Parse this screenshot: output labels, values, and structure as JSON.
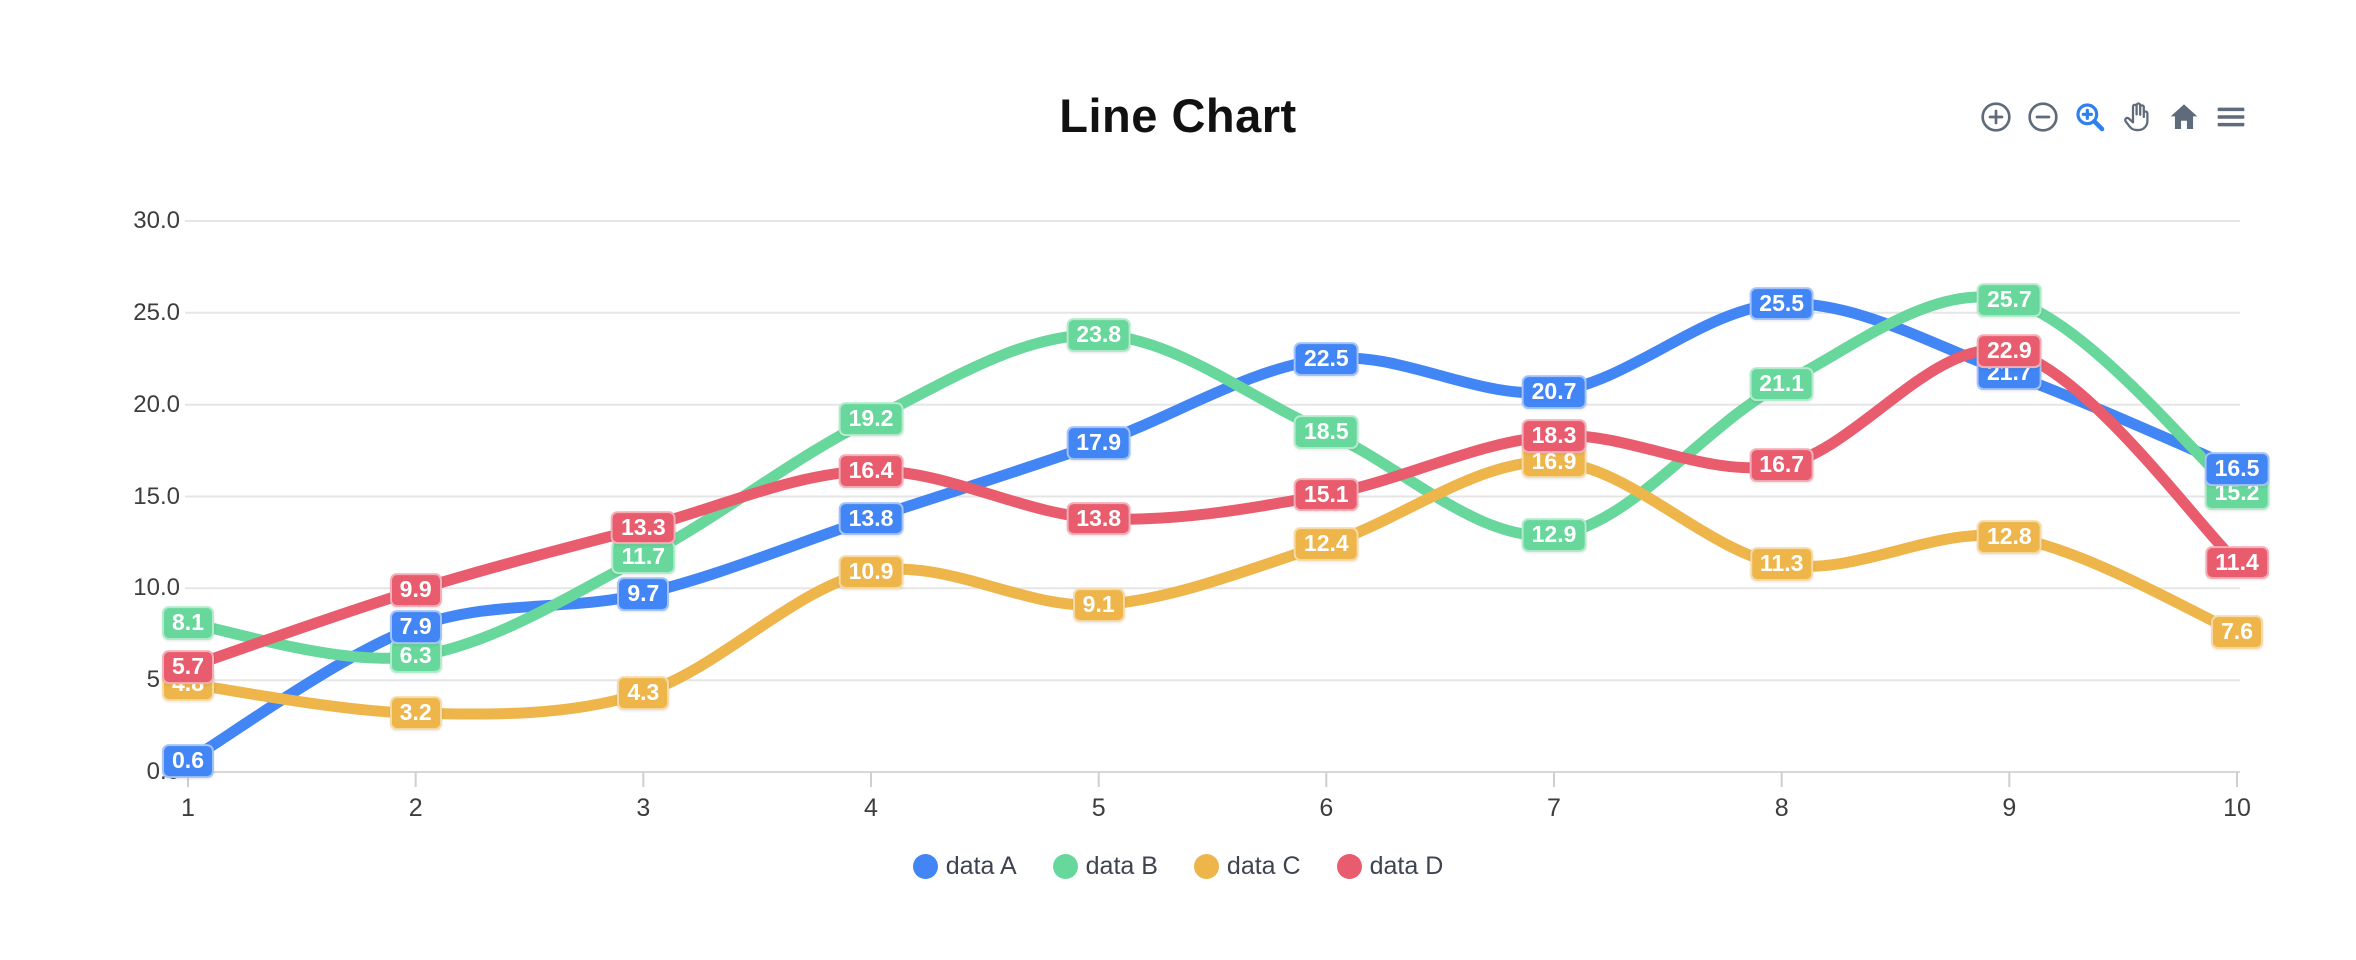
{
  "title": "Line Chart",
  "toolbar": {
    "icons": [
      "zoom-in-icon",
      "zoom-out-icon",
      "box-zoom-icon",
      "pan-icon",
      "home-icon",
      "menu-icon"
    ]
  },
  "chart_data": {
    "type": "line",
    "title": "Line Chart",
    "x": [
      1,
      2,
      3,
      4,
      5,
      6,
      7,
      8,
      9,
      10
    ],
    "x_tick_labels": [
      "1",
      "2",
      "3",
      "4",
      "5",
      "6",
      "7",
      "8",
      "9",
      "10"
    ],
    "y_ticks": [
      0,
      5,
      10,
      15,
      20,
      25,
      30
    ],
    "y_tick_labels": [
      "0.0",
      "5.0",
      "10.0",
      "15.0",
      "20.0",
      "25.0",
      "30.0"
    ],
    "ylim": [
      0,
      30
    ],
    "xlabel": "",
    "ylabel": "",
    "grid": "horizontal",
    "legend_position": "bottom",
    "data_labels": true,
    "series": [
      {
        "name": "data A",
        "color": "#4285F4",
        "values": [
          0.6,
          7.9,
          9.7,
          13.8,
          17.9,
          22.5,
          20.7,
          25.5,
          21.7,
          16.5
        ]
      },
      {
        "name": "data B",
        "color": "#67D79B",
        "values": [
          8.1,
          6.3,
          11.7,
          19.2,
          23.8,
          18.5,
          12.9,
          21.1,
          25.7,
          15.2
        ]
      },
      {
        "name": "data C",
        "color": "#EEB54A",
        "values": [
          4.8,
          3.2,
          4.3,
          10.9,
          9.1,
          12.4,
          16.9,
          11.3,
          12.8,
          7.6
        ]
      },
      {
        "name": "data D",
        "color": "#E85C6E",
        "values": [
          5.7,
          9.9,
          13.3,
          16.4,
          13.8,
          15.1,
          18.3,
          16.7,
          22.9,
          11.4
        ]
      }
    ]
  }
}
